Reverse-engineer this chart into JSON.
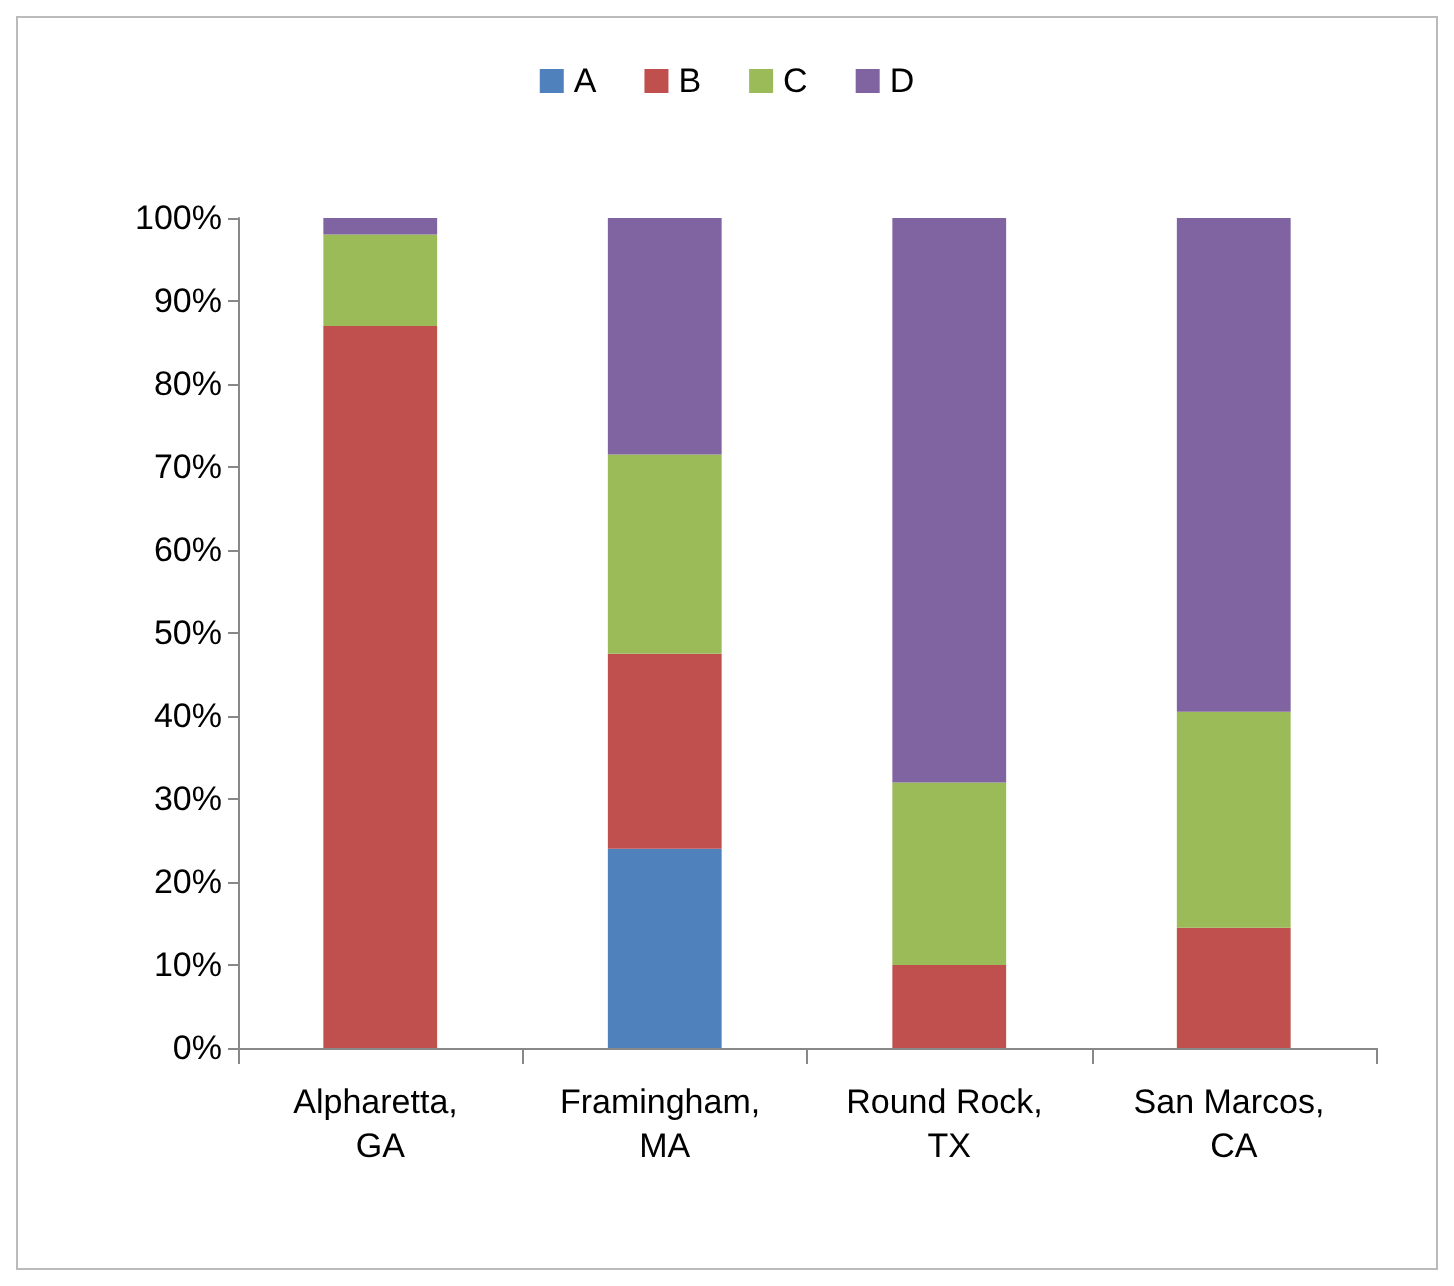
{
  "chart_data": {
    "type": "bar",
    "stacked": true,
    "categories": [
      "Alpharetta, GA",
      "Framingham, MA",
      "Round Rock, TX",
      "San Marcos, CA"
    ],
    "series": [
      {
        "name": "A",
        "color": "#4f81bd",
        "values": [
          0,
          24,
          0,
          0
        ]
      },
      {
        "name": "B",
        "color": "#c0504d",
        "values": [
          87,
          23.5,
          10,
          14.5
        ]
      },
      {
        "name": "C",
        "color": "#9bbb59",
        "values": [
          11,
          24,
          22,
          26
        ]
      },
      {
        "name": "D",
        "color": "#8064a2",
        "values": [
          2,
          28.5,
          68,
          59.5
        ]
      }
    ],
    "ylim": [
      0,
      100
    ],
    "yticks": [
      {
        "value": 0,
        "label": "0%"
      },
      {
        "value": 10,
        "label": "10%"
      },
      {
        "value": 20,
        "label": "20%"
      },
      {
        "value": 30,
        "label": "30%"
      },
      {
        "value": 40,
        "label": "40%"
      },
      {
        "value": 50,
        "label": "50%"
      },
      {
        "value": 60,
        "label": "60%"
      },
      {
        "value": 70,
        "label": "70%"
      },
      {
        "value": 80,
        "label": "80%"
      },
      {
        "value": 90,
        "label": "90%"
      },
      {
        "value": 100,
        "label": "100%"
      }
    ],
    "grid": false,
    "legend": "top"
  }
}
